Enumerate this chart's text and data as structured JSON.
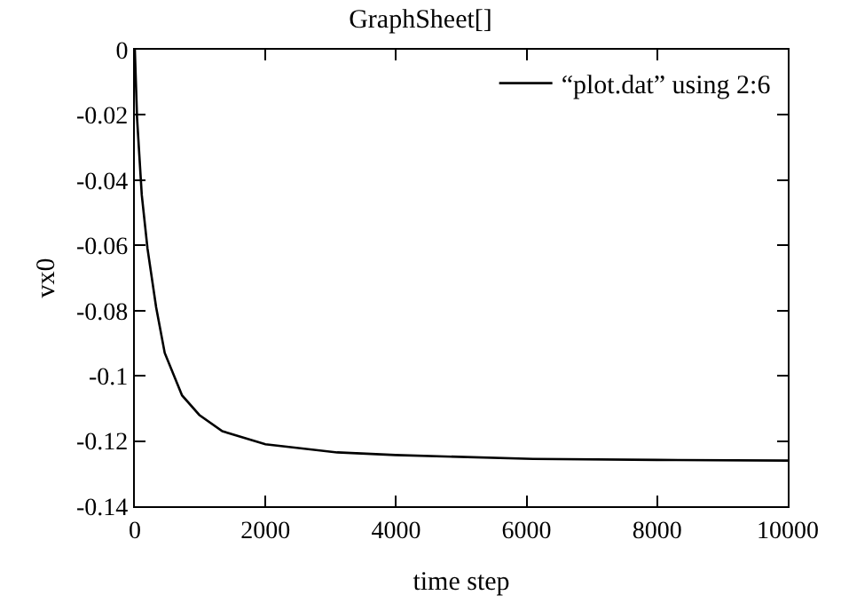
{
  "chart_data": {
    "type": "line",
    "title": "GraphSheet[]",
    "xlabel": "time step",
    "ylabel": "vx0",
    "x": [
      0,
      34,
      106,
      194,
      326,
      458,
      723,
      987,
      1340,
      2000,
      3100,
      3990,
      6100,
      8000,
      10000
    ],
    "series": [
      {
        "name": "“plot.dat” using 2:6",
        "color": "#000000",
        "values": [
          0,
          -0.021,
          -0.0445,
          -0.061,
          -0.079,
          -0.093,
          -0.106,
          -0.112,
          -0.117,
          -0.121,
          -0.1235,
          -0.1243,
          -0.1255,
          -0.1258,
          -0.126
        ]
      }
    ],
    "xlim": [
      0,
      10000
    ],
    "xticks": [
      0,
      2000,
      4000,
      6000,
      8000,
      10000
    ],
    "ylim": [
      -0.14,
      0
    ],
    "yticks": [
      -0.14,
      -0.12,
      -0.1,
      -0.08,
      -0.06,
      -0.04,
      -0.02,
      0
    ],
    "legend": "top right",
    "marker": "none",
    "line_style": "solid"
  }
}
